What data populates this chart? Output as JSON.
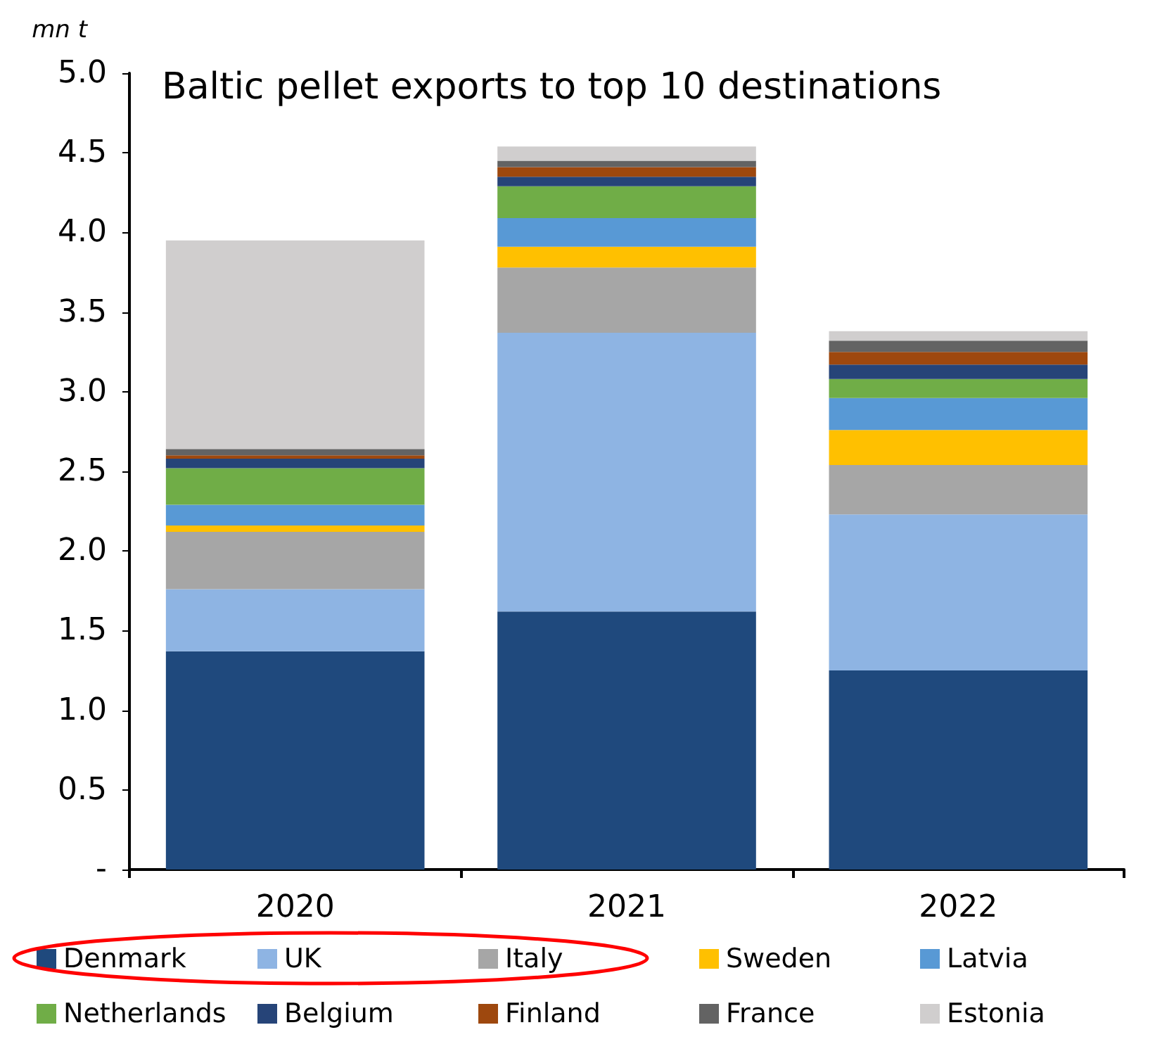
{
  "chart_data": {
    "type": "bar",
    "title": "Baltic pellet exports to top 10 destinations",
    "ylabel": "mn t",
    "stacked": true,
    "categories": [
      "2020",
      "2021",
      "2022"
    ],
    "series": [
      {
        "name": "Denmark",
        "color": "#1f497d",
        "values": [
          1.37,
          1.62,
          1.25
        ]
      },
      {
        "name": "UK",
        "color": "#8eb4e3",
        "values": [
          0.39,
          1.75,
          0.98
        ]
      },
      {
        "name": "Italy",
        "color": "#a6a6a6",
        "values": [
          0.36,
          0.41,
          0.31
        ]
      },
      {
        "name": "Sweden",
        "color": "#ffc000",
        "values": [
          0.04,
          0.13,
          0.22
        ]
      },
      {
        "name": "Latvia",
        "color": "#5899d5",
        "values": [
          0.13,
          0.18,
          0.2
        ]
      },
      {
        "name": "Netherlands",
        "color": "#70ad47",
        "values": [
          0.23,
          0.2,
          0.12
        ]
      },
      {
        "name": "Belgium",
        "color": "#264478",
        "values": [
          0.06,
          0.06,
          0.09
        ]
      },
      {
        "name": "Finland",
        "color": "#9e480e",
        "values": [
          0.02,
          0.06,
          0.08
        ]
      },
      {
        "name": "France",
        "color": "#636363",
        "values": [
          0.04,
          0.04,
          0.07
        ]
      },
      {
        "name": "Estonia",
        "color": "#d0cece",
        "values": [
          1.31,
          0.09,
          0.06
        ]
      }
    ],
    "ylim": [
      0,
      5
    ],
    "yticks": [
      {
        "value": 0,
        "label": "-"
      },
      0.5,
      {
        "value": 1,
        "label": "1.0"
      },
      1.5,
      {
        "value": 2,
        "label": "2.0"
      },
      2.5,
      {
        "value": 3,
        "label": "3.0"
      },
      3.5,
      {
        "value": 4,
        "label": "4.0"
      },
      4.5,
      {
        "value": 5,
        "label": "5.0"
      }
    ],
    "grid": false,
    "legend": "bottom"
  }
}
